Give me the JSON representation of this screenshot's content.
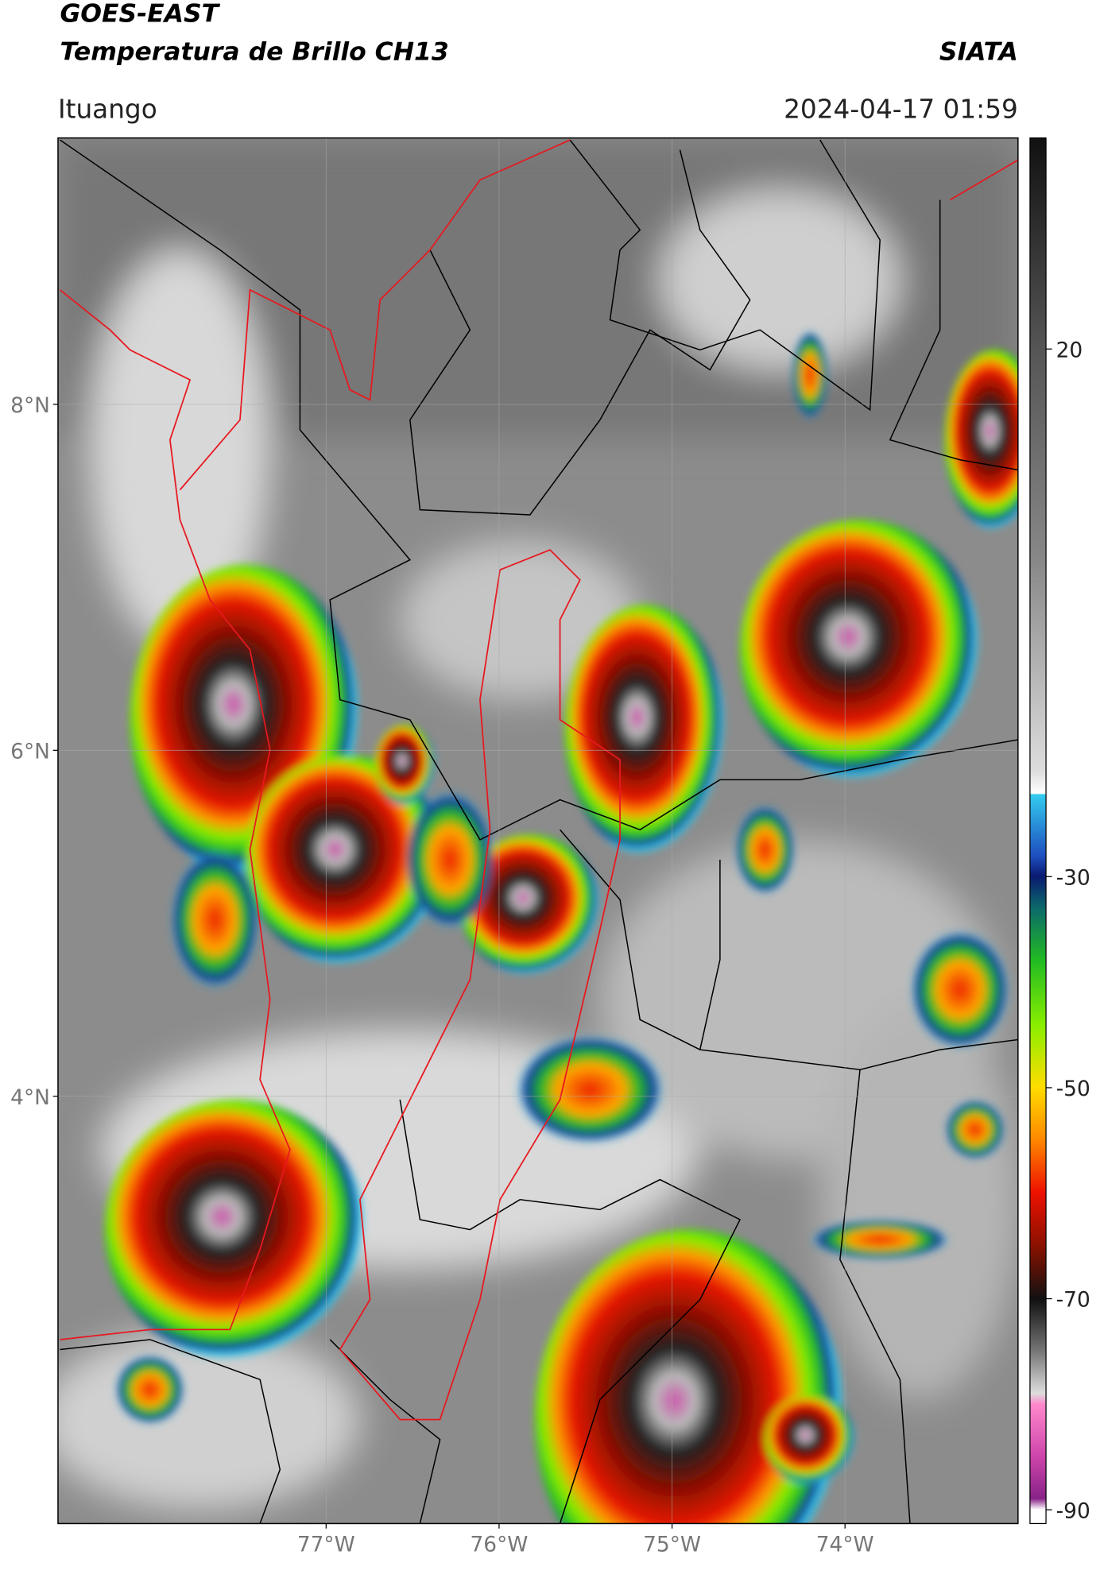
{
  "header": {
    "title": "GOES-EAST",
    "subtitle": "Temperatura de Brillo CH13",
    "source": "SIATA",
    "location": "Ituango",
    "datetime": "2024-04-17 01:59"
  },
  "map": {
    "lat_lim": [
      1.53,
      9.54
    ],
    "lon_lim": [
      -78.55,
      -73.0
    ],
    "lat_ticks": [
      {
        "value": 8,
        "label": "8°N"
      },
      {
        "value": 6,
        "label": "6°N"
      },
      {
        "value": 4,
        "label": "4°N"
      }
    ],
    "lon_ticks": [
      {
        "value": -77,
        "label": "77°W"
      },
      {
        "value": -76,
        "label": "76°W"
      },
      {
        "value": -75,
        "label": "75°W"
      },
      {
        "value": -74,
        "label": "74°W"
      }
    ]
  },
  "colorbar": {
    "lim": [
      -91.3,
      40
    ],
    "ticks": [
      20,
      -30,
      -50,
      -70,
      -90
    ]
  }
}
